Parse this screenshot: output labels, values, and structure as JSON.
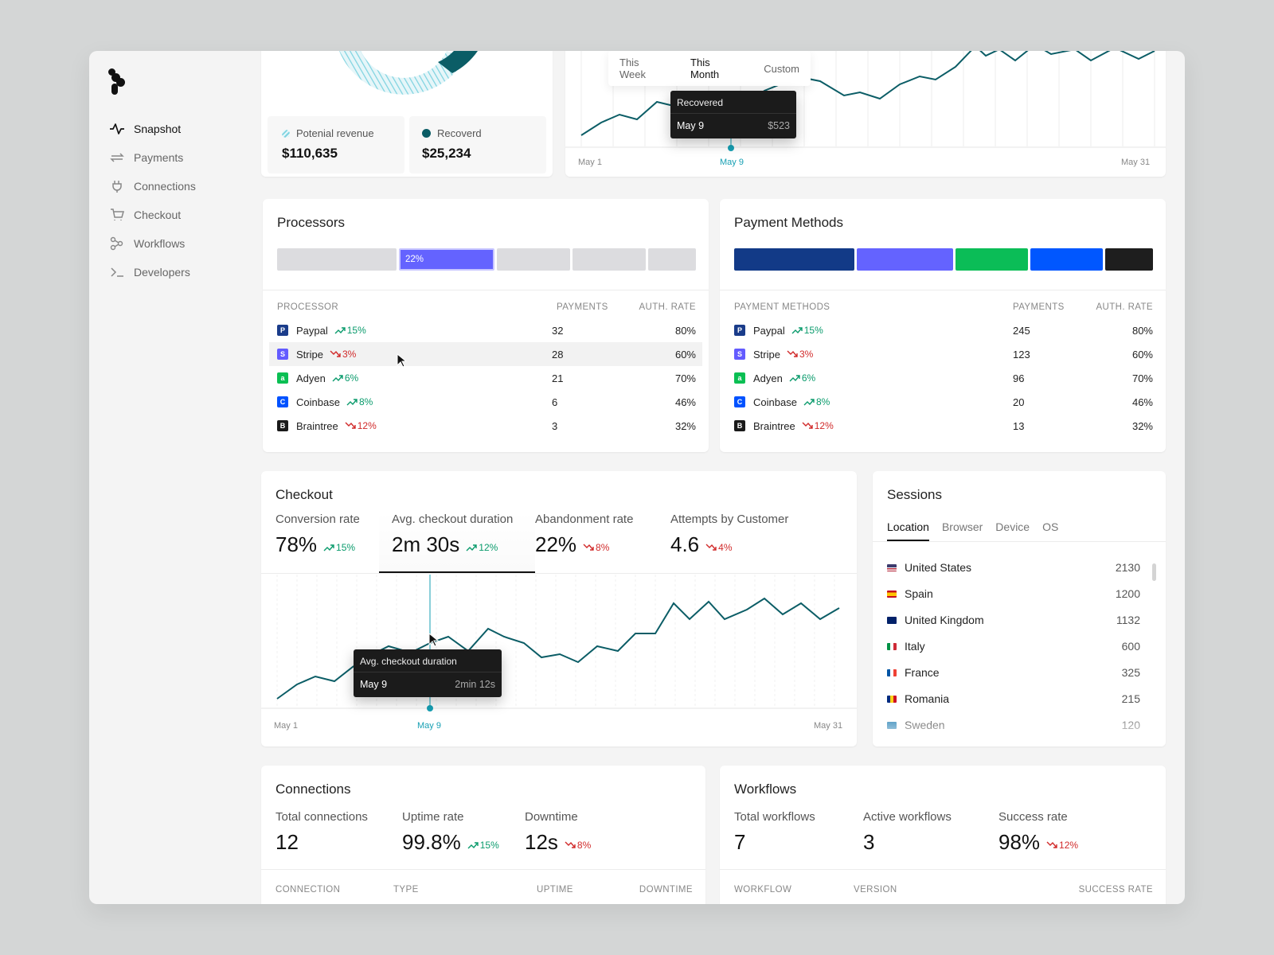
{
  "sidebar": {
    "items": [
      {
        "label": "Snapshot",
        "icon": "activity-icon"
      },
      {
        "label": "Payments",
        "icon": "arrows-exchange-icon"
      },
      {
        "label": "Connections",
        "icon": "plug-icon"
      },
      {
        "label": "Checkout",
        "icon": "cart-icon"
      },
      {
        "label": "Workflows",
        "icon": "workflow-icon"
      },
      {
        "label": "Developers",
        "icon": "terminal-icon"
      }
    ]
  },
  "revenue": {
    "potential_label": "Potenial revenue",
    "potential_value": "$110,635",
    "recovered_label": "Recoverd",
    "recovered_value": "$25,234"
  },
  "recovered_chart": {
    "tabs": [
      "This Week",
      "This Month",
      "Custom"
    ],
    "active_tab": "This Month",
    "tooltip": {
      "title": "Recovered",
      "date": "May 9",
      "value": "$523"
    },
    "axis": {
      "start": "May 1",
      "marker": "May 9",
      "end": "May 31"
    }
  },
  "processors": {
    "title": "Processors",
    "bar_label": "22%",
    "columns": [
      "Processor",
      "Payments",
      "Auth. rate"
    ],
    "rows": [
      {
        "name": "Paypal",
        "trend": "15%",
        "dir": "up",
        "payments": "32",
        "auth": "80%",
        "color": "#1a3c8a",
        "letter": "P"
      },
      {
        "name": "Stripe",
        "trend": "3%",
        "dir": "down",
        "payments": "28",
        "auth": "60%",
        "color": "#635bff",
        "letter": "S"
      },
      {
        "name": "Adyen",
        "trend": "6%",
        "dir": "up",
        "payments": "21",
        "auth": "70%",
        "color": "#0abf53",
        "letter": "a"
      },
      {
        "name": "Coinbase",
        "trend": "8%",
        "dir": "up",
        "payments": "6",
        "auth": "46%",
        "color": "#0052ff",
        "letter": "C"
      },
      {
        "name": "Braintree",
        "trend": "12%",
        "dir": "down",
        "payments": "3",
        "auth": "32%",
        "color": "#1a1a1a",
        "letter": "B"
      }
    ]
  },
  "payment_methods": {
    "title": "Payment Methods",
    "columns": [
      "Payment Methods",
      "Payments",
      "Auth. rate"
    ],
    "rows": [
      {
        "name": "Paypal",
        "trend": "15%",
        "dir": "up",
        "payments": "245",
        "auth": "80%",
        "color": "#1a3c8a",
        "letter": "P"
      },
      {
        "name": "Stripe",
        "trend": "3%",
        "dir": "down",
        "payments": "123",
        "auth": "60%",
        "color": "#635bff",
        "letter": "S"
      },
      {
        "name": "Adyen",
        "trend": "6%",
        "dir": "up",
        "payments": "96",
        "auth": "70%",
        "color": "#0abf53",
        "letter": "a"
      },
      {
        "name": "Coinbase",
        "trend": "8%",
        "dir": "up",
        "payments": "20",
        "auth": "46%",
        "color": "#0052ff",
        "letter": "C"
      },
      {
        "name": "Braintree",
        "trend": "12%",
        "dir": "down",
        "payments": "13",
        "auth": "32%",
        "color": "#1a1a1a",
        "letter": "B"
      }
    ],
    "bar_colors": [
      "#123a87",
      "#6463ff",
      "#0bbd57",
      "#0057ff",
      "#1e1e1e"
    ]
  },
  "checkout": {
    "title": "Checkout",
    "kpis": [
      {
        "label": "Conversion rate",
        "value": "78%",
        "trend": "15%",
        "dir": "up"
      },
      {
        "label": "Avg. checkout duration",
        "value": "2m 30s",
        "trend": "12%",
        "dir": "up"
      },
      {
        "label": "Abandonment rate",
        "value": "22%",
        "trend": "8%",
        "dir": "down"
      },
      {
        "label": "Attempts by Customer",
        "value": "4.6",
        "trend": "4%",
        "dir": "down"
      }
    ],
    "tooltip": {
      "title": "Avg. checkout duration",
      "date": "May 9",
      "value": "2min 12s"
    },
    "axis": {
      "start": "May 1",
      "marker": "May 9",
      "end": "May 31"
    }
  },
  "sessions": {
    "title": "Sessions",
    "tabs": [
      "Location",
      "Browser",
      "Device",
      "OS"
    ],
    "active_tab": "Location",
    "rows": [
      {
        "country": "United States",
        "value": "2130"
      },
      {
        "country": "Spain",
        "value": "1200"
      },
      {
        "country": "United Kingdom",
        "value": "1132"
      },
      {
        "country": "Italy",
        "value": "600"
      },
      {
        "country": "France",
        "value": "325"
      },
      {
        "country": "Romania",
        "value": "215"
      },
      {
        "country": "Sweden",
        "value": "120"
      }
    ]
  },
  "connections": {
    "title": "Connections",
    "kpis": [
      {
        "label": "Total connections",
        "value": "12"
      },
      {
        "label": "Uptime rate",
        "value": "99.8%",
        "trend": "15%",
        "dir": "up"
      },
      {
        "label": "Downtime",
        "value": "12s",
        "trend": "8%",
        "dir": "down"
      }
    ],
    "columns": [
      "Connection",
      "Type",
      "Uptime",
      "Downtime"
    ]
  },
  "workflows": {
    "title": "Workflows",
    "kpis": [
      {
        "label": "Total workflows",
        "value": "7"
      },
      {
        "label": "Active workflows",
        "value": "3"
      },
      {
        "label": "Success rate",
        "value": "98%",
        "trend": "12%",
        "dir": "down"
      }
    ],
    "columns": [
      "Workflow",
      "Version",
      "Success rate"
    ]
  }
}
